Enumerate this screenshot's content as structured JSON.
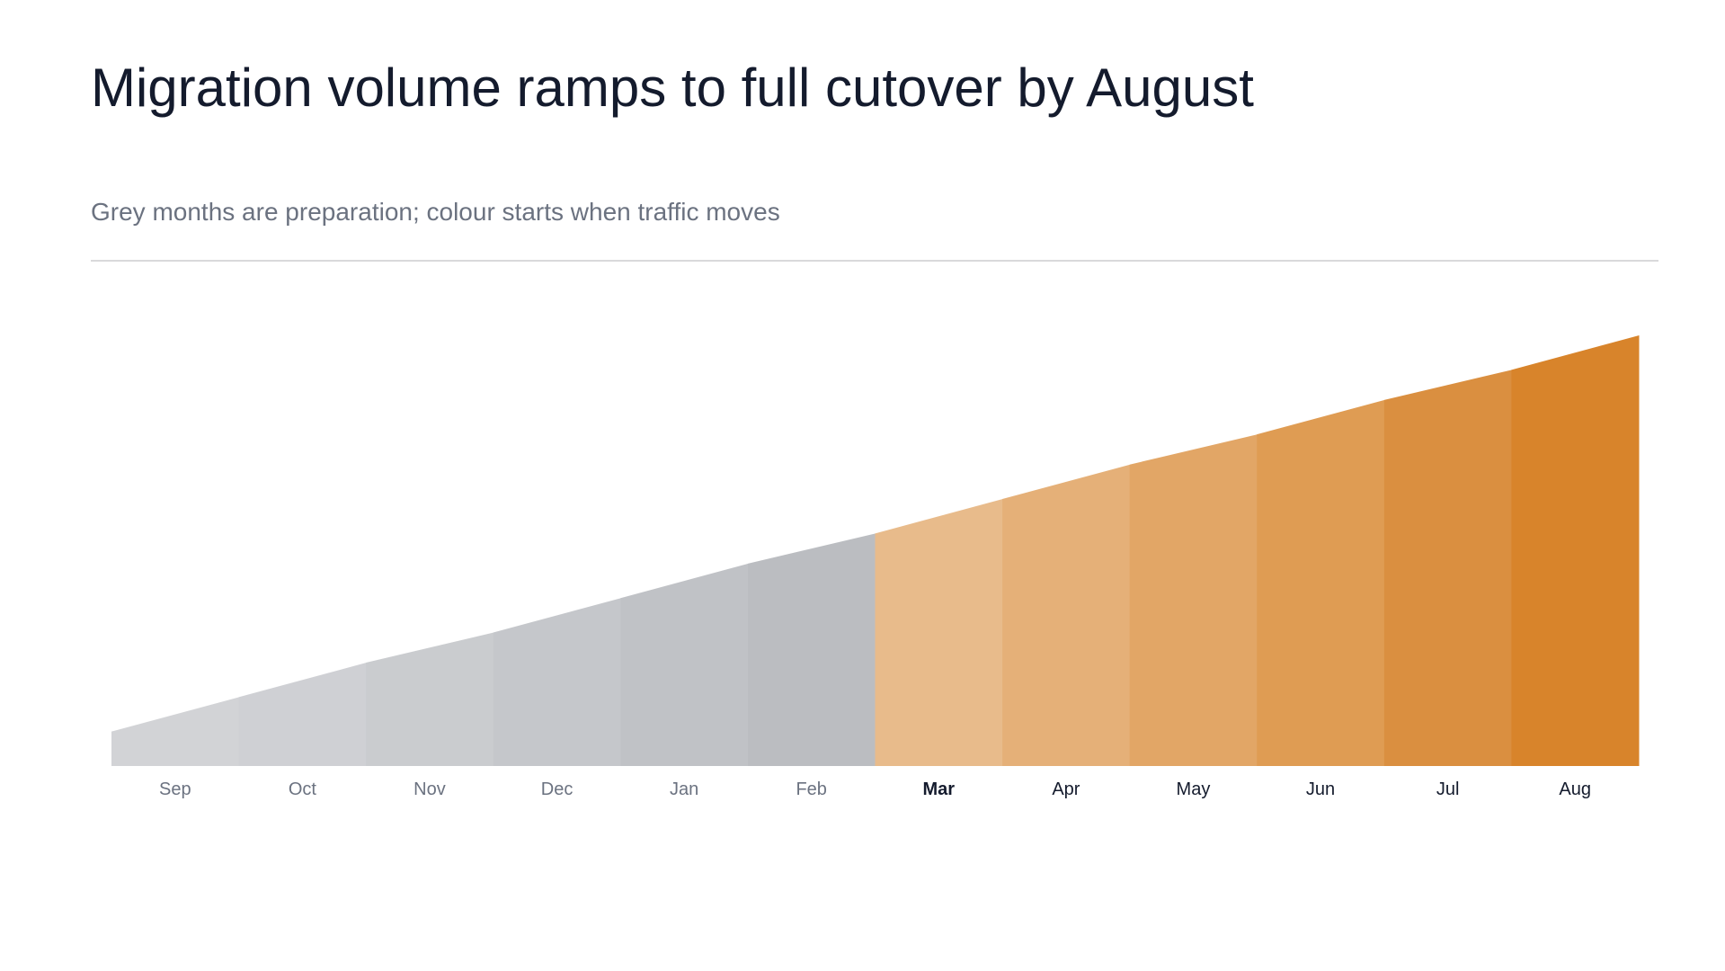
{
  "chart_data": {
    "type": "area",
    "title": "Migration volume ramps to full cutover by August",
    "subtitle": "Grey months are preparation; colour starts when traffic moves",
    "categories": [
      "Sep",
      "Oct",
      "Nov",
      "Dec",
      "Jan",
      "Feb",
      "Mar",
      "Apr",
      "May",
      "Jun",
      "Jul",
      "Aug"
    ],
    "values": [
      16,
      24,
      31,
      39,
      47,
      54,
      62,
      70,
      77,
      85,
      92,
      100
    ],
    "colors": [
      "#d2d3d6",
      "#cfd0d4",
      "#cacccf",
      "#c5c7cb",
      "#c0c2c6",
      "#bbbdc1",
      "#e8bb8b",
      "#e5b078",
      "#e2a666",
      "#df9c53",
      "#da8f40",
      "#d8842b"
    ],
    "emphasis": 6,
    "ylim": [
      0,
      100
    ]
  }
}
